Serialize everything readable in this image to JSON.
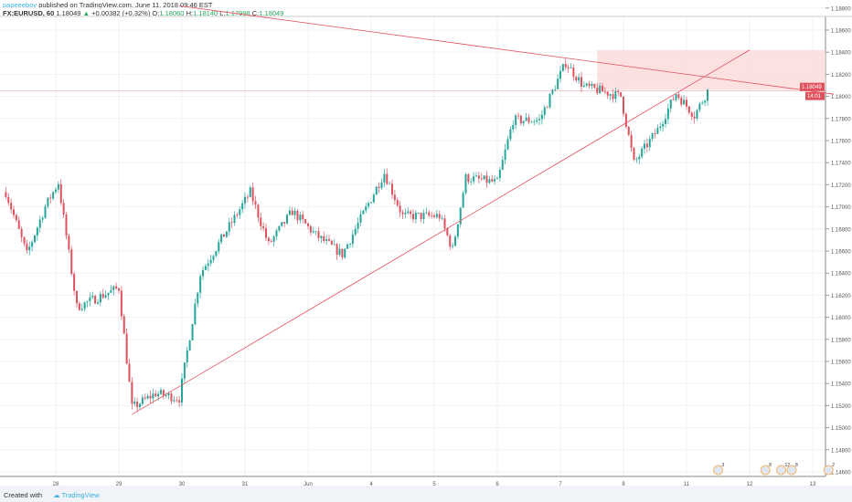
{
  "header": {
    "author": "papeeeboy",
    "published": "published on TradingView.com, June 11, 2018 09:46 EST",
    "symbol": "FX:EURUSD, 60",
    "last": "1.18049",
    "change": "+0.00382 (+0.32%)",
    "o_label": "O:",
    "o": "1.18060",
    "h_label": "H:",
    "h": "1.18140",
    "l_label": "L:",
    "l": "1.17998",
    "c_label": "C:",
    "c": "1.18049"
  },
  "footer": {
    "created_with": "Created with",
    "brand": "TradingView"
  },
  "colors": {
    "up": "#26a69a",
    "down": "#e0515e",
    "drawing": "#e0515e",
    "zone": "#fbdada"
  },
  "chart_data": {
    "type": "candlestick",
    "timeframe": "60",
    "y_ticks": [
      "1.18800",
      "1.18600",
      "1.18400",
      "1.18200",
      "1.18000",
      "1.17800",
      "1.17600",
      "1.17400",
      "1.17200",
      "1.17000",
      "1.16800",
      "1.16600",
      "1.16400",
      "1.16200",
      "1.16000",
      "1.15800",
      "1.15600",
      "1.15400",
      "1.15200",
      "1.15000",
      "1.14800",
      "1.14600"
    ],
    "ylim": [
      1.146,
      1.188
    ],
    "x_ticks": [
      {
        "label": "28",
        "date": "05-28"
      },
      {
        "label": "29",
        "date": "05-29"
      },
      {
        "label": "30",
        "date": "05-30"
      },
      {
        "label": "31",
        "date": "05-31"
      },
      {
        "label": "Jun",
        "date": "06-01"
      },
      {
        "label": "4",
        "date": "06-04"
      },
      {
        "label": "5",
        "date": "06-05"
      },
      {
        "label": "6",
        "date": "06-06"
      },
      {
        "label": "7",
        "date": "06-07"
      },
      {
        "label": "8",
        "date": "06-08"
      },
      {
        "label": "11",
        "date": "06-11"
      },
      {
        "label": "12",
        "date": "06-12"
      },
      {
        "label": "13",
        "date": "06-13"
      }
    ],
    "trading_days": [
      "05-25",
      "05-28",
      "05-29",
      "05-30",
      "05-31",
      "06-01",
      "06-04",
      "06-05",
      "06-06",
      "06-07",
      "06-08",
      "06-11",
      "06-12",
      "06-13"
    ],
    "price_path": [
      [
        "05-25 05",
        1.17133
      ],
      [
        "05-25 13",
        1.16569
      ],
      [
        "05-25 20",
        1.17003
      ],
      [
        "05-28 01",
        1.1722
      ],
      [
        "05-28 08",
        1.16092
      ],
      [
        "05-29 00",
        1.16266
      ],
      [
        "05-29 05",
        1.15181
      ],
      [
        "05-29 14",
        1.15311
      ],
      [
        "05-29 23",
        1.15267
      ],
      [
        "05-30 07",
        1.16396
      ],
      [
        "05-31 02",
        1.17133
      ],
      [
        "05-31 09",
        1.16656
      ],
      [
        "05-31 18",
        1.1696
      ],
      [
        "06-01 03",
        1.16743
      ],
      [
        "06-01 13",
        1.16569
      ],
      [
        "06-04 05",
        1.17307
      ],
      [
        "06-04 12",
        1.16917
      ],
      [
        "06-05 02",
        1.16917
      ],
      [
        "06-05 07",
        1.16613
      ],
      [
        "06-05 12",
        1.17264
      ],
      [
        "06-06 00",
        1.1722
      ],
      [
        "06-06 06",
        1.17784
      ],
      [
        "06-06 16",
        1.17784
      ],
      [
        "06-07 02",
        1.18305
      ],
      [
        "06-07 09",
        1.18088
      ],
      [
        "06-07 23",
        1.18001
      ],
      [
        "06-08 04",
        1.17394
      ],
      [
        "06-08 13",
        1.17698
      ],
      [
        "06-08 20",
        1.18027
      ],
      [
        "06-11 03",
        1.17828
      ],
      [
        "06-11 08",
        1.18049
      ]
    ],
    "last_price_label": "1.18049",
    "countdown": "14:01",
    "drawings": {
      "support_trendline": [
        [
          "05-29 05",
          1.1512
        ],
        [
          "06-12 00",
          1.1842
        ]
      ],
      "resistance_trendline": [
        [
          "05-29 23",
          1.1882
        ],
        [
          "06-13 08",
          1.1802
        ]
      ],
      "zone": {
        "from": "06-07 14",
        "to": "06-13 08",
        "top": 1.1842,
        "bottom": 1.1806
      }
    },
    "event_markers": [
      {
        "date": "06-11 12",
        "count": "3"
      },
      {
        "date": "06-12 06",
        "count": "8"
      },
      {
        "date": "06-12 12",
        "count": "12"
      },
      {
        "date": "06-12 16",
        "count": "8"
      },
      {
        "date": "06-13 06",
        "count": "2"
      }
    ]
  }
}
